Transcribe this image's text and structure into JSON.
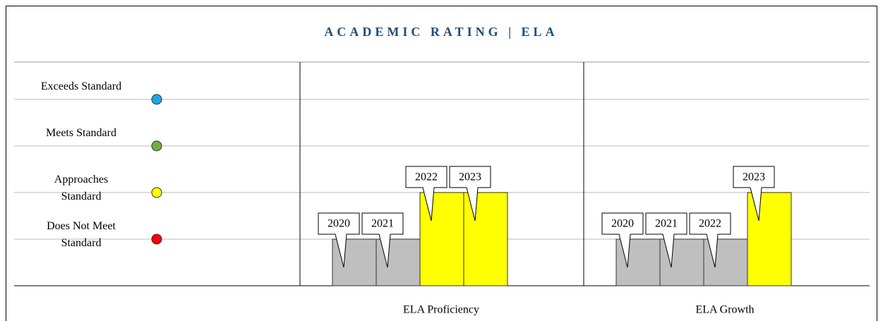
{
  "chart_data": {
    "type": "bar",
    "title": "ACADEMIC RATING | ELA",
    "ylim": [
      0,
      4.8
    ],
    "yticks": [
      {
        "value": 1,
        "label": "Does Not Meet Standard",
        "color": "#ff0000"
      },
      {
        "value": 2,
        "label": "Approaches Standard",
        "color": "#ffff00"
      },
      {
        "value": 3,
        "label": "Meets Standard",
        "color": "#70ad47"
      },
      {
        "value": 4,
        "label": "Exceeds Standard",
        "color": "#1ea7e8"
      }
    ],
    "grid": true,
    "panels": [
      {
        "name": "ELA Proficiency",
        "categories": [
          "2020",
          "2021",
          "2022",
          "2023"
        ],
        "values": [
          1,
          1,
          2,
          2
        ],
        "colors": [
          "#bfbfbf",
          "#bfbfbf",
          "#ffff00",
          "#ffff00"
        ]
      },
      {
        "name": "ELA Growth",
        "categories": [
          "2020",
          "2021",
          "2022",
          "2023"
        ],
        "values": [
          1,
          1,
          1,
          2
        ],
        "colors": [
          "#bfbfbf",
          "#bfbfbf",
          "#bfbfbf",
          "#ffff00"
        ]
      }
    ]
  }
}
